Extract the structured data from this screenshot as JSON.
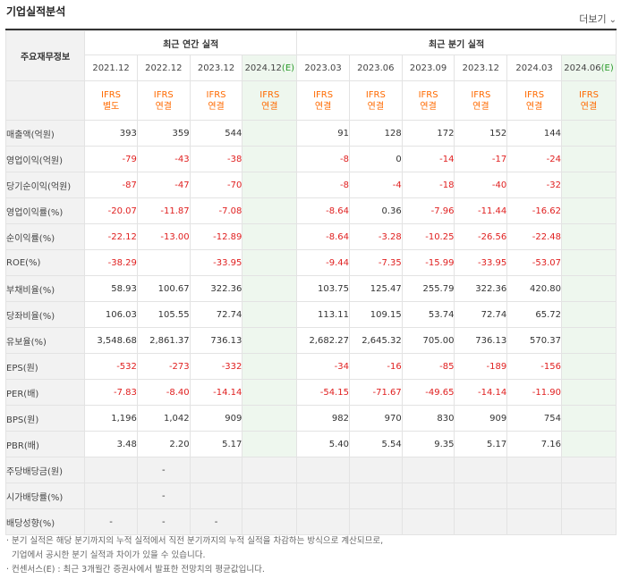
{
  "title": "기업실적분석",
  "more_label": "더보기",
  "more_icon": "chevron-down-icon",
  "corner_label": "주요재무정보",
  "groups": {
    "annual": "최근 연간 실적",
    "quarterly": "최근 분기 실적"
  },
  "periods": [
    {
      "label": "2021.12",
      "ifrs": "IFRS",
      "type": "별도",
      "est": false
    },
    {
      "label": "2022.12",
      "ifrs": "IFRS",
      "type": "연결",
      "est": false
    },
    {
      "label": "2023.12",
      "ifrs": "IFRS",
      "type": "연결",
      "est": false
    },
    {
      "label": "2024.12",
      "ifrs": "IFRS",
      "type": "연결",
      "est": true
    },
    {
      "label": "2023.03",
      "ifrs": "IFRS",
      "type": "연결",
      "est": false
    },
    {
      "label": "2023.06",
      "ifrs": "IFRS",
      "type": "연결",
      "est": false
    },
    {
      "label": "2023.09",
      "ifrs": "IFRS",
      "type": "연결",
      "est": false
    },
    {
      "label": "2023.12",
      "ifrs": "IFRS",
      "type": "연결",
      "est": false
    },
    {
      "label": "2024.03",
      "ifrs": "IFRS",
      "type": "연결",
      "est": false
    },
    {
      "label": "2024.06",
      "ifrs": "IFRS",
      "type": "연결",
      "est": true
    }
  ],
  "est_mark": "(E)",
  "rows": [
    {
      "label": "매출액(억원)",
      "values": [
        "393",
        "359",
        "544",
        "",
        "91",
        "128",
        "172",
        "152",
        "144",
        ""
      ]
    },
    {
      "label": "영업이익(억원)",
      "values": [
        "-79",
        "-43",
        "-38",
        "",
        "-8",
        "0",
        "-14",
        "-17",
        "-24",
        ""
      ]
    },
    {
      "label": "당기순이익(억원)",
      "values": [
        "-87",
        "-47",
        "-70",
        "",
        "-8",
        "-4",
        "-18",
        "-40",
        "-32",
        ""
      ]
    },
    {
      "label": "영업이익률(%)",
      "values": [
        "-20.07",
        "-11.87",
        "-7.08",
        "",
        "-8.64",
        "0.36",
        "-7.96",
        "-11.44",
        "-16.62",
        ""
      ]
    },
    {
      "label": "순이익률(%)",
      "values": [
        "-22.12",
        "-13.00",
        "-12.89",
        "",
        "-8.64",
        "-3.28",
        "-10.25",
        "-26.56",
        "-22.48",
        ""
      ]
    },
    {
      "label": "ROE(%)",
      "values": [
        "-38.29",
        "",
        "-33.95",
        "",
        "-9.44",
        "-7.35",
        "-15.99",
        "-33.95",
        "-53.07",
        ""
      ]
    },
    {
      "label": "부채비율(%)",
      "values": [
        "58.93",
        "100.67",
        "322.36",
        "",
        "103.75",
        "125.47",
        "255.79",
        "322.36",
        "420.80",
        ""
      ]
    },
    {
      "label": "당좌비율(%)",
      "values": [
        "106.03",
        "105.55",
        "72.74",
        "",
        "113.11",
        "109.15",
        "53.74",
        "72.74",
        "65.72",
        ""
      ]
    },
    {
      "label": "유보율(%)",
      "values": [
        "3,548.68",
        "2,861.37",
        "736.13",
        "",
        "2,682.27",
        "2,645.32",
        "705.00",
        "736.13",
        "570.37",
        ""
      ]
    },
    {
      "label": "EPS(원)",
      "values": [
        "-532",
        "-273",
        "-332",
        "",
        "-34",
        "-16",
        "-85",
        "-189",
        "-156",
        ""
      ]
    },
    {
      "label": "PER(배)",
      "values": [
        "-7.83",
        "-8.40",
        "-14.14",
        "",
        "-54.15",
        "-71.67",
        "-49.65",
        "-14.14",
        "-11.90",
        ""
      ]
    },
    {
      "label": "BPS(원)",
      "values": [
        "1,196",
        "1,042",
        "909",
        "",
        "982",
        "970",
        "830",
        "909",
        "754",
        ""
      ]
    },
    {
      "label": "PBR(배)",
      "values": [
        "3.48",
        "2.20",
        "5.17",
        "",
        "5.40",
        "5.54",
        "9.35",
        "5.17",
        "7.16",
        ""
      ]
    },
    {
      "label": "주당배당금(원)",
      "values": [
        "",
        "-",
        "",
        "",
        "",
        "",
        "",
        "",
        "",
        ""
      ]
    },
    {
      "label": "시가배당률(%)",
      "values": [
        "",
        "-",
        "",
        "",
        "",
        "",
        "",
        "",
        "",
        ""
      ]
    },
    {
      "label": "배당성향(%)",
      "values": [
        "-",
        "-",
        "-",
        "",
        "",
        "",
        "",
        "",
        "",
        ""
      ]
    }
  ],
  "notes": [
    "· 분기 실적은 해당 분기까지의 누적 실적에서 직전 분기까지의 누적 실적을 차감하는 방식으로 계산되므로,",
    "  기업에서 공시한 분기 실적과 차이가 있을 수 있습니다.",
    "· 컨센서스(E) : 최근 3개월간 증권사에서 발표한 전망치의 평균값입니다."
  ]
}
